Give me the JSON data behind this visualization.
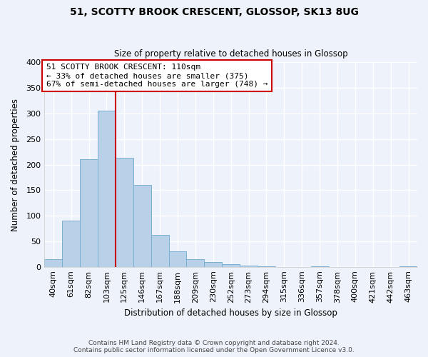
{
  "title": "51, SCOTTY BROOK CRESCENT, GLOSSOP, SK13 8UG",
  "subtitle": "Size of property relative to detached houses in Glossop",
  "xlabel": "Distribution of detached houses by size in Glossop",
  "ylabel": "Number of detached properties",
  "bar_color": "#b8d0e8",
  "bar_edge_color": "#7aafd4",
  "background_color": "#eef2fa",
  "grid_color": "#ffffff",
  "bin_labels": [
    "40sqm",
    "61sqm",
    "82sqm",
    "103sqm",
    "125sqm",
    "146sqm",
    "167sqm",
    "188sqm",
    "209sqm",
    "230sqm",
    "252sqm",
    "273sqm",
    "294sqm",
    "315sqm",
    "336sqm",
    "357sqm",
    "378sqm",
    "400sqm",
    "421sqm",
    "442sqm",
    "463sqm"
  ],
  "bar_heights": [
    15,
    90,
    210,
    305,
    213,
    160,
    63,
    30,
    15,
    9,
    5,
    2,
    1,
    0,
    0,
    1,
    0,
    0,
    0,
    0,
    1
  ],
  "ylim": [
    0,
    400
  ],
  "yticks": [
    0,
    50,
    100,
    150,
    200,
    250,
    300,
    350,
    400
  ],
  "property_line_x": 3.5,
  "annotation_title": "51 SCOTTY BROOK CRESCENT: 110sqm",
  "annotation_line1": "← 33% of detached houses are smaller (375)",
  "annotation_line2": "67% of semi-detached houses are larger (748) →",
  "annotation_box_color": "#ffffff",
  "annotation_box_edge": "#cc0000",
  "property_line_color": "#cc0000",
  "footer_line1": "Contains HM Land Registry data © Crown copyright and database right 2024.",
  "footer_line2": "Contains public sector information licensed under the Open Government Licence v3.0."
}
